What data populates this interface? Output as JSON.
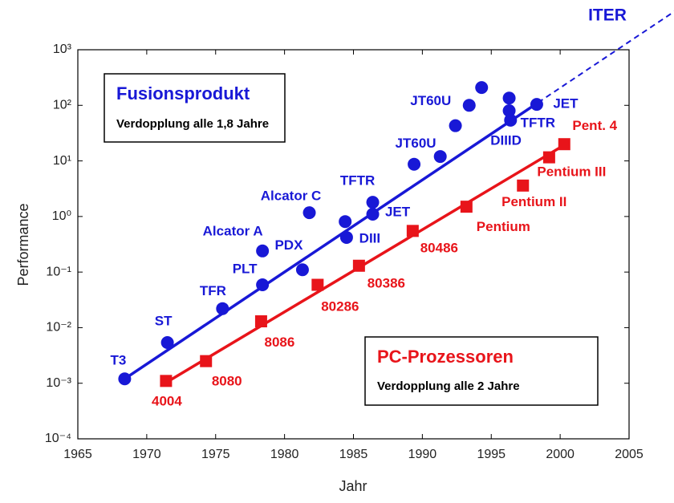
{
  "chart_data": {
    "type": "scatter",
    "yscale": "log",
    "x_label": "Jahr",
    "y_label": "Performance",
    "xlim": [
      1965,
      2005
    ],
    "xticks": [
      1965,
      1970,
      1975,
      1980,
      1985,
      1990,
      1995,
      2000,
      2005
    ],
    "ylim": [
      0.0001,
      1000
    ],
    "yticks": [
      {
        "value": 0.0001,
        "label": "10⁻⁴"
      },
      {
        "value": 0.001,
        "label": "10⁻³"
      },
      {
        "value": 0.01,
        "label": "10⁻²"
      },
      {
        "value": 0.1,
        "label": "10⁻¹"
      },
      {
        "value": 1,
        "label": "10⁰"
      },
      {
        "value": 10,
        "label": "10¹"
      },
      {
        "value": 100,
        "label": "10²"
      },
      {
        "value": 1000,
        "label": "10³"
      }
    ],
    "series": [
      {
        "name": "Fusionsprodukt",
        "subtitle": "Verdopplung alle 1,8 Jahre",
        "color": "#1818d6",
        "marker": "circle",
        "x": [
          1968.4,
          1971.5,
          1975.5,
          1978.4,
          1978.4,
          1981.3,
          1981.8,
          1984.4,
          1984.5,
          1986.4,
          1986.4,
          1989.4,
          1991.3,
          1992.4,
          1993.4,
          1994.3,
          1996.3,
          1996.3,
          1996.4,
          1998.3
        ],
        "values": [
          0.0012,
          0.0054,
          0.022,
          0.059,
          0.24,
          0.11,
          1.17,
          0.81,
          0.42,
          1.8,
          1.1,
          8.7,
          12,
          43,
          100,
          209,
          135,
          80,
          54,
          104
        ],
        "labels": [
          "T3",
          "ST",
          "TFR",
          "PLT",
          "Alcator A",
          "PDX",
          "Alcator C",
          null,
          "DIII",
          "TFTR",
          "JET",
          "JT60U",
          null,
          null,
          "JT60U",
          null,
          null,
          "DIIID",
          "TFTR",
          "JET"
        ]
      },
      {
        "name": "PC-Prozessoren",
        "subtitle": "Verdopplung alle 2 Jahre",
        "color": "#e8141a",
        "marker": "square",
        "x": [
          1971.4,
          1974.3,
          1978.3,
          1982.4,
          1985.4,
          1989.3,
          1993.2,
          1997.3,
          1999.2,
          2000.3
        ],
        "values": [
          0.0011,
          0.0025,
          0.013,
          0.059,
          0.13,
          0.55,
          1.5,
          3.6,
          11.6,
          20
        ],
        "labels": [
          "4004",
          "8080",
          "8086",
          "80286",
          "80386",
          "80486",
          "Pentium",
          "Pentium II",
          "Pentium III",
          "Pent. 4"
        ]
      }
    ],
    "trend_lines": [
      {
        "color": "#1818d6",
        "x": [
          1968.4,
          1998.4
        ],
        "values": [
          0.0012,
          112
        ]
      },
      {
        "color": "#e8141a",
        "x": [
          1971.6,
          2000.4
        ],
        "values": [
          0.0011,
          20
        ]
      },
      {
        "color": "#1818d6",
        "dashed": true,
        "x": [
          1998.4,
          2008.3
        ],
        "values": [
          112,
          4900
        ]
      }
    ],
    "annotation": "ITER"
  }
}
